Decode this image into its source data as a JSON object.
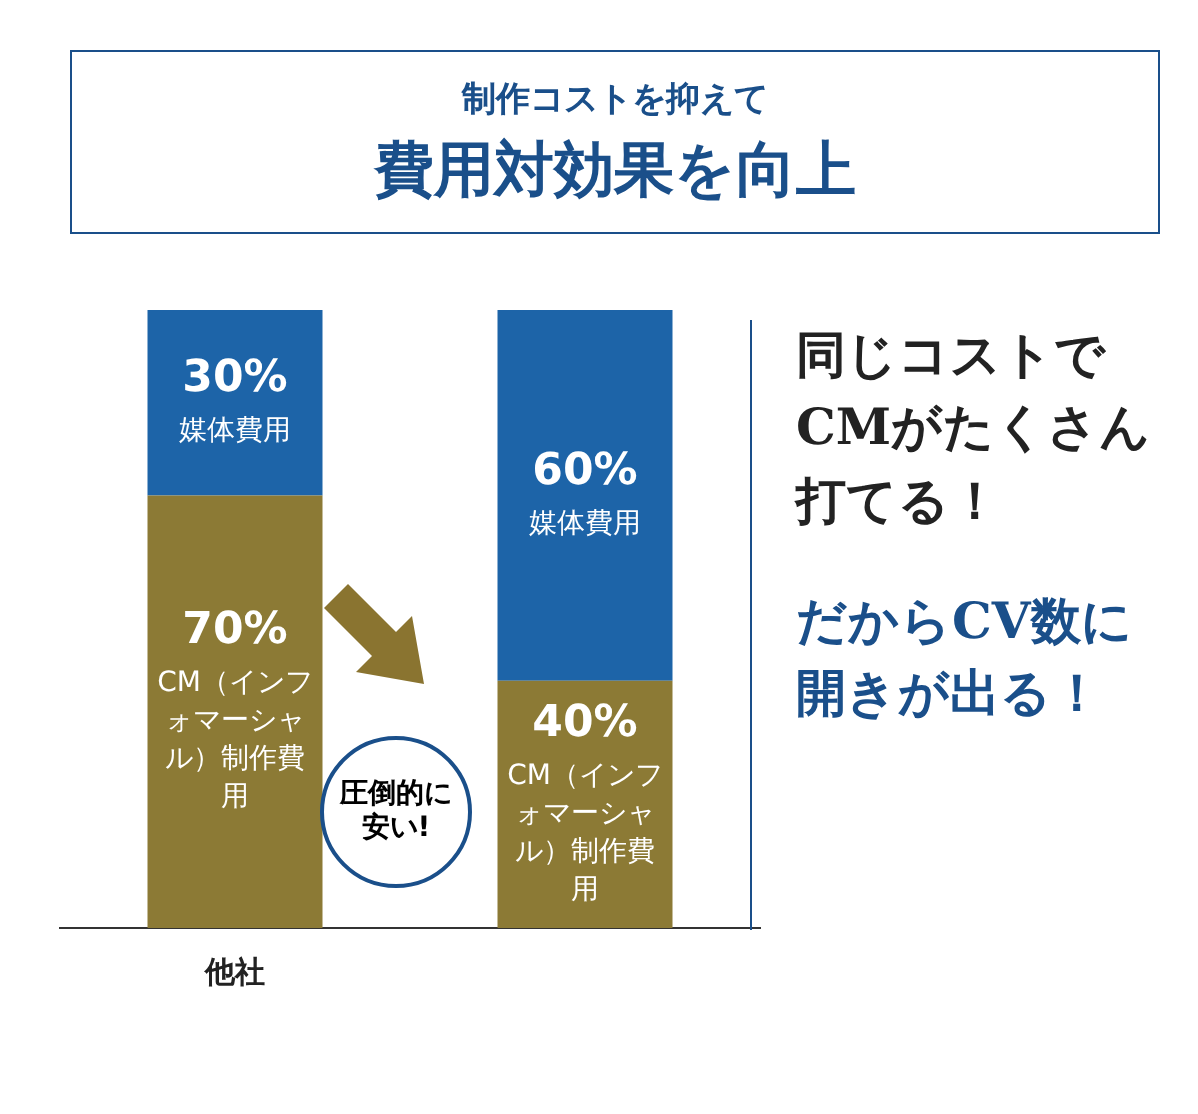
{
  "chart_data": {
    "type": "bar",
    "title": "費用対効果を向上",
    "subtitle": "制作コストを抑えて",
    "categories": [
      "他社",
      null
    ],
    "stacked": true,
    "legend": false,
    "grid": false,
    "series": [
      {
        "name": "CM（インフォマーシャル）制作費用",
        "color": "#8c7a35",
        "values": [
          70,
          40
        ],
        "value_labels": [
          "70%",
          "40%"
        ]
      },
      {
        "name": "媒体費用",
        "color": "#1d64a8",
        "values": [
          30,
          60
        ],
        "value_labels": [
          "30%",
          "60%"
        ]
      }
    ],
    "annotations": [
      "圧倒的に安い!",
      "同じコストでCMがたくさん打てる！",
      "だからCV数に開きが出る！"
    ]
  }
}
